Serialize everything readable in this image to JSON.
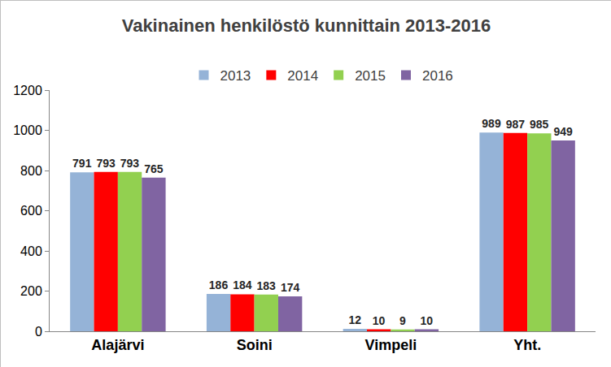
{
  "chart_data": {
    "type": "bar",
    "title": "Vakinainen henkilöstö kunnittain 2013-2016",
    "categories": [
      "Alajärvi",
      "Soini",
      "Vimpeli",
      "Yht."
    ],
    "series": [
      {
        "name": "2013",
        "color": "#95b3d7",
        "values": [
          791,
          186,
          12,
          989
        ]
      },
      {
        "name": "2014",
        "color": "#ff0000",
        "values": [
          793,
          184,
          10,
          987
        ]
      },
      {
        "name": "2015",
        "color": "#92d050",
        "values": [
          793,
          183,
          9,
          985
        ]
      },
      {
        "name": "2016",
        "color": "#8064a2",
        "values": [
          765,
          174,
          10,
          949
        ]
      }
    ],
    "ylim": [
      0,
      1200
    ],
    "yticks": [
      0,
      200,
      400,
      600,
      800,
      1000,
      1200
    ],
    "grid": false,
    "legend": "top",
    "data_labels": true
  }
}
